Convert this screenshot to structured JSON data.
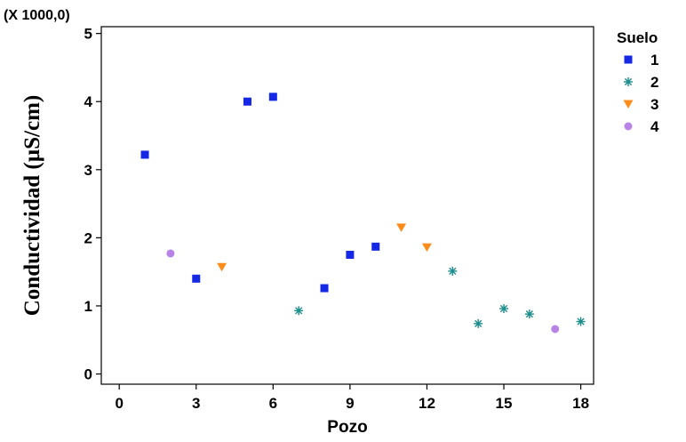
{
  "chart_data": {
    "type": "scatter",
    "title": "",
    "multiplier_label": "(X 1000,0)",
    "xlabel": "Pozo",
    "ylabel": "Conductividad (µS/cm)",
    "xlim": [
      -0.7,
      18.5
    ],
    "ylim": [
      -0.15,
      5.1
    ],
    "xticks": [
      0,
      3,
      6,
      9,
      12,
      15,
      18
    ],
    "yticks": [
      0,
      1,
      2,
      3,
      4,
      5
    ],
    "grid": false,
    "legend_title": "Suelo",
    "legend_position": "top-right",
    "series": [
      {
        "name": "1",
        "marker": "square",
        "color": "#1428e6",
        "points": [
          [
            1,
            3.22
          ],
          [
            3,
            1.4
          ],
          [
            5,
            4.0
          ],
          [
            6,
            4.07
          ],
          [
            8,
            1.26
          ],
          [
            9,
            1.75
          ],
          [
            10,
            1.87
          ]
        ]
      },
      {
        "name": "2",
        "marker": "asterisk",
        "color": "#1a8c8c",
        "points": [
          [
            7,
            0.93
          ],
          [
            13,
            1.51
          ],
          [
            14,
            0.74
          ],
          [
            15,
            0.96
          ],
          [
            16,
            0.88
          ],
          [
            18,
            0.77
          ]
        ]
      },
      {
        "name": "3",
        "marker": "triangle-down",
        "color": "#ff8c1a",
        "points": [
          [
            4,
            1.57
          ],
          [
            11,
            2.15
          ],
          [
            12,
            1.86
          ]
        ]
      },
      {
        "name": "4",
        "marker": "circle",
        "color": "#b784e6",
        "points": [
          [
            2,
            1.77
          ],
          [
            17,
            0.66
          ]
        ]
      }
    ]
  }
}
